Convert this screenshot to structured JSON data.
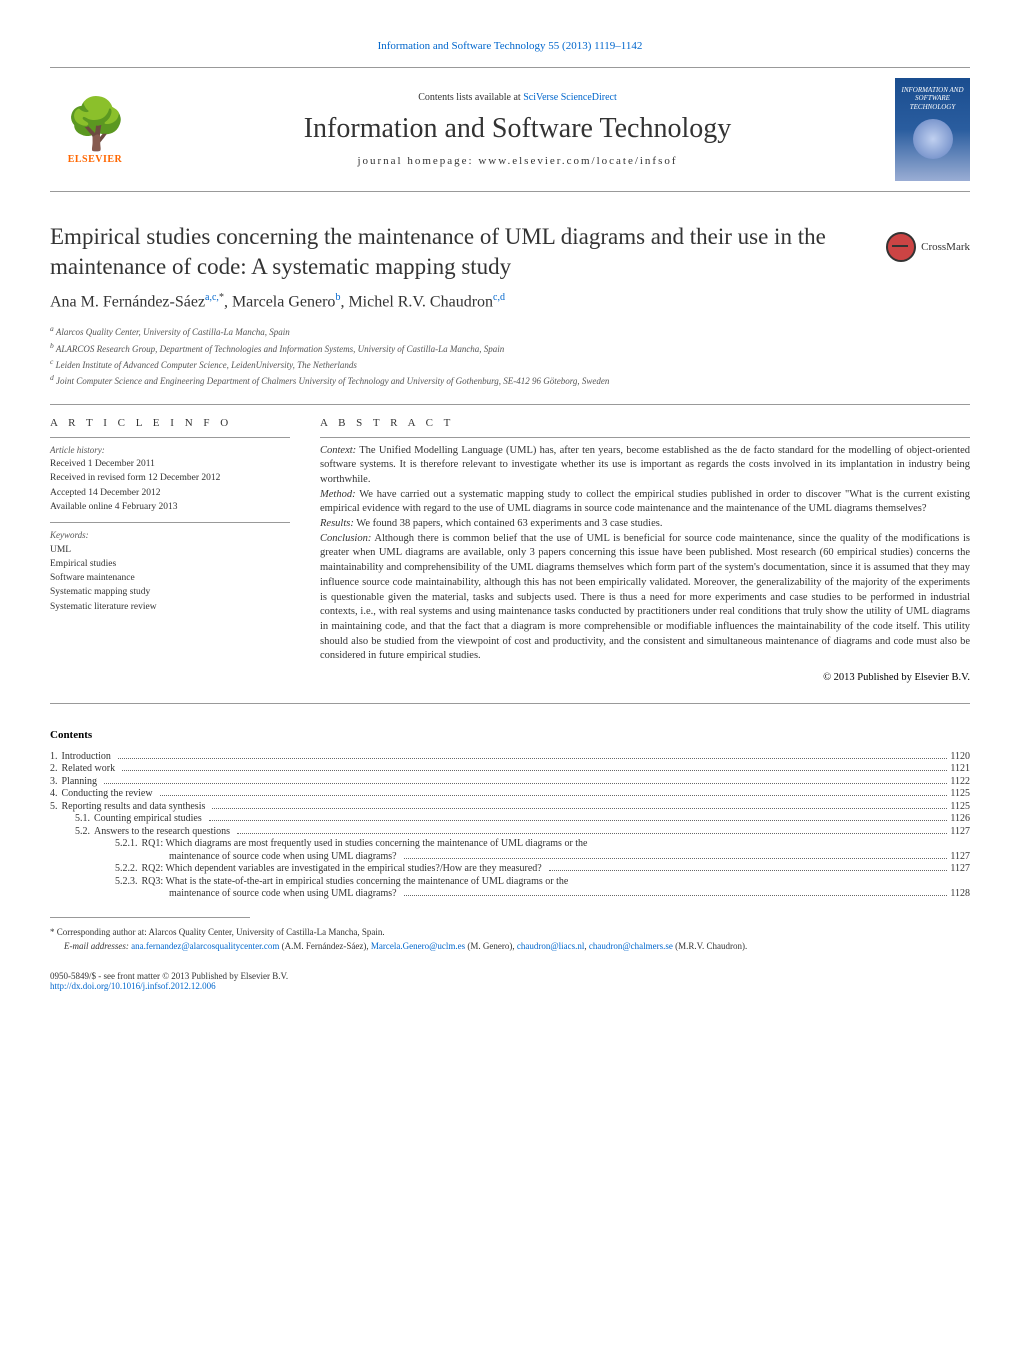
{
  "journal_ref": "Information and Software Technology 55 (2013) 1119–1142",
  "header": {
    "contents_prefix": "Contents lists available at ",
    "contents_link": "SciVerse ScienceDirect",
    "journal_title": "Information and Software Technology",
    "homepage": "journal homepage: www.elsevier.com/locate/infsof",
    "elsevier": "ELSEVIER",
    "cover_text": "INFORMATION AND SOFTWARE TECHNOLOGY"
  },
  "crossmark": "CrossMark",
  "article": {
    "title": "Empirical studies concerning the maintenance of UML diagrams and their use in the maintenance of code: A systematic mapping study",
    "authors_html": "Ana M. Fernández-Sáez",
    "author1_sup": "a,c,",
    "author1_star": "*",
    "author2": ", Marcela Genero",
    "author2_sup": "b",
    "author3": ", Michel R.V. Chaudron",
    "author3_sup": "c,d"
  },
  "affiliations": {
    "a": "Alarcos Quality Center, University of Castilla-La Mancha, Spain",
    "b": "ALARCOS Research Group, Department of Technologies and Information Systems, University of Castilla-La Mancha, Spain",
    "c": "Leiden Institute of Advanced Computer Science, LeidenUniversity, The Netherlands",
    "d": "Joint Computer Science and Engineering Department of Chalmers University of Technology and University of Gothenburg, SE-412 96 Göteborg, Sweden"
  },
  "info_heading": "A R T I C L E   I N F O",
  "abstract_heading": "A B S T R A C T",
  "history": {
    "label": "Article history:",
    "received": "Received 1 December 2011",
    "revised": "Received in revised form 12 December 2012",
    "accepted": "Accepted 14 December 2012",
    "online": "Available online 4 February 2013"
  },
  "keywords": {
    "label": "Keywords:",
    "items": [
      "UML",
      "Empirical studies",
      "Software maintenance",
      "Systematic mapping study",
      "Systematic literature review"
    ]
  },
  "abstract": {
    "context_label": "Context:",
    "context": " The Unified Modelling Language (UML) has, after ten years, become established as the de facto standard for the modelling of object-oriented software systems. It is therefore relevant to investigate whether its use is important as regards the costs involved in its implantation in industry being worthwhile.",
    "method_label": "Method:",
    "method": " We have carried out a systematic mapping study to collect the empirical studies published in order to discover \"What is the current existing empirical evidence with regard to the use of UML diagrams in source code maintenance and the maintenance of the UML diagrams themselves?",
    "results_label": "Results:",
    "results": " We found 38 papers, which contained 63 experiments and 3 case studies.",
    "conclusion_label": "Conclusion:",
    "conclusion": " Although there is common belief that the use of UML is beneficial for source code maintenance, since the quality of the modifications is greater when UML diagrams are available, only 3 papers concerning this issue have been published. Most research (60 empirical studies) concerns the maintainability and comprehensibility of the UML diagrams themselves which form part of the system's documentation, since it is assumed that they may influence source code maintainability, although this has not been empirically validated. Moreover, the generalizability of the majority of the experiments is questionable given the material, tasks and subjects used. There is thus a need for more experiments and case studies to be performed in industrial contexts, i.e., with real systems and using maintenance tasks conducted by practitioners under real conditions that truly show the utility of UML diagrams in maintaining code, and that the fact that a diagram is more comprehensible or modifiable influences the maintainability of the code itself. This utility should also be studied from the viewpoint of cost and productivity, and the consistent and simultaneous maintenance of diagrams and code must also be considered in future empirical studies."
  },
  "copyright": "© 2013 Published by Elsevier B.V.",
  "contents_heading": "Contents",
  "toc": [
    {
      "num": "1.",
      "label": "Introduction",
      "page": "1120",
      "indent": 0
    },
    {
      "num": "2.",
      "label": "Related work",
      "page": "1121",
      "indent": 0
    },
    {
      "num": "3.",
      "label": "Planning",
      "page": "1122",
      "indent": 0
    },
    {
      "num": "4.",
      "label": "Conducting the review",
      "page": "1125",
      "indent": 0
    },
    {
      "num": "5.",
      "label": "Reporting results and data synthesis",
      "page": "1125",
      "indent": 0
    },
    {
      "num": "5.1.",
      "label": "Counting empirical studies",
      "page": "1126",
      "indent": 1
    },
    {
      "num": "5.2.",
      "label": "Answers to the research questions",
      "page": "1127",
      "indent": 1
    },
    {
      "num": "5.2.1.",
      "label": "RQ1: Which diagrams are most frequently used in studies concerning the maintenance of UML diagrams or the maintenance of source code when using UML diagrams?",
      "page": "1127",
      "indent": 2
    },
    {
      "num": "5.2.2.",
      "label": "RQ2: Which dependent variables are investigated in the empirical studies?/How are they measured?",
      "page": "1127",
      "indent": 2
    },
    {
      "num": "5.2.3.",
      "label": "RQ3: What is the state-of-the-art in empirical studies concerning the maintenance of UML diagrams or the maintenance of source code when using UML diagrams?",
      "page": "1128",
      "indent": 2
    }
  ],
  "footnotes": {
    "corresp_marker": "*",
    "corresp": " Corresponding author at: Alarcos Quality Center, University of Castilla-La Mancha, Spain.",
    "email_label": "E-mail addresses: ",
    "email1": "ana.fernandez@alarcosqualitycenter.com",
    "email1_name": " (A.M. Fernández-Sáez), ",
    "email2": "Marcela.Genero@uclm.es",
    "email2_name": " (M. Genero), ",
    "email3": "chaudron@liacs.nl",
    "comma": ", ",
    "email4": "chaudron@chalmers.se",
    "email4_name": " (M.R.V. Chaudron)."
  },
  "bottom": {
    "issn": "0950-5849/$ - see front matter © 2013 Published by Elsevier B.V.",
    "doi": "http://dx.doi.org/10.1016/j.infsof.2012.12.006"
  }
}
